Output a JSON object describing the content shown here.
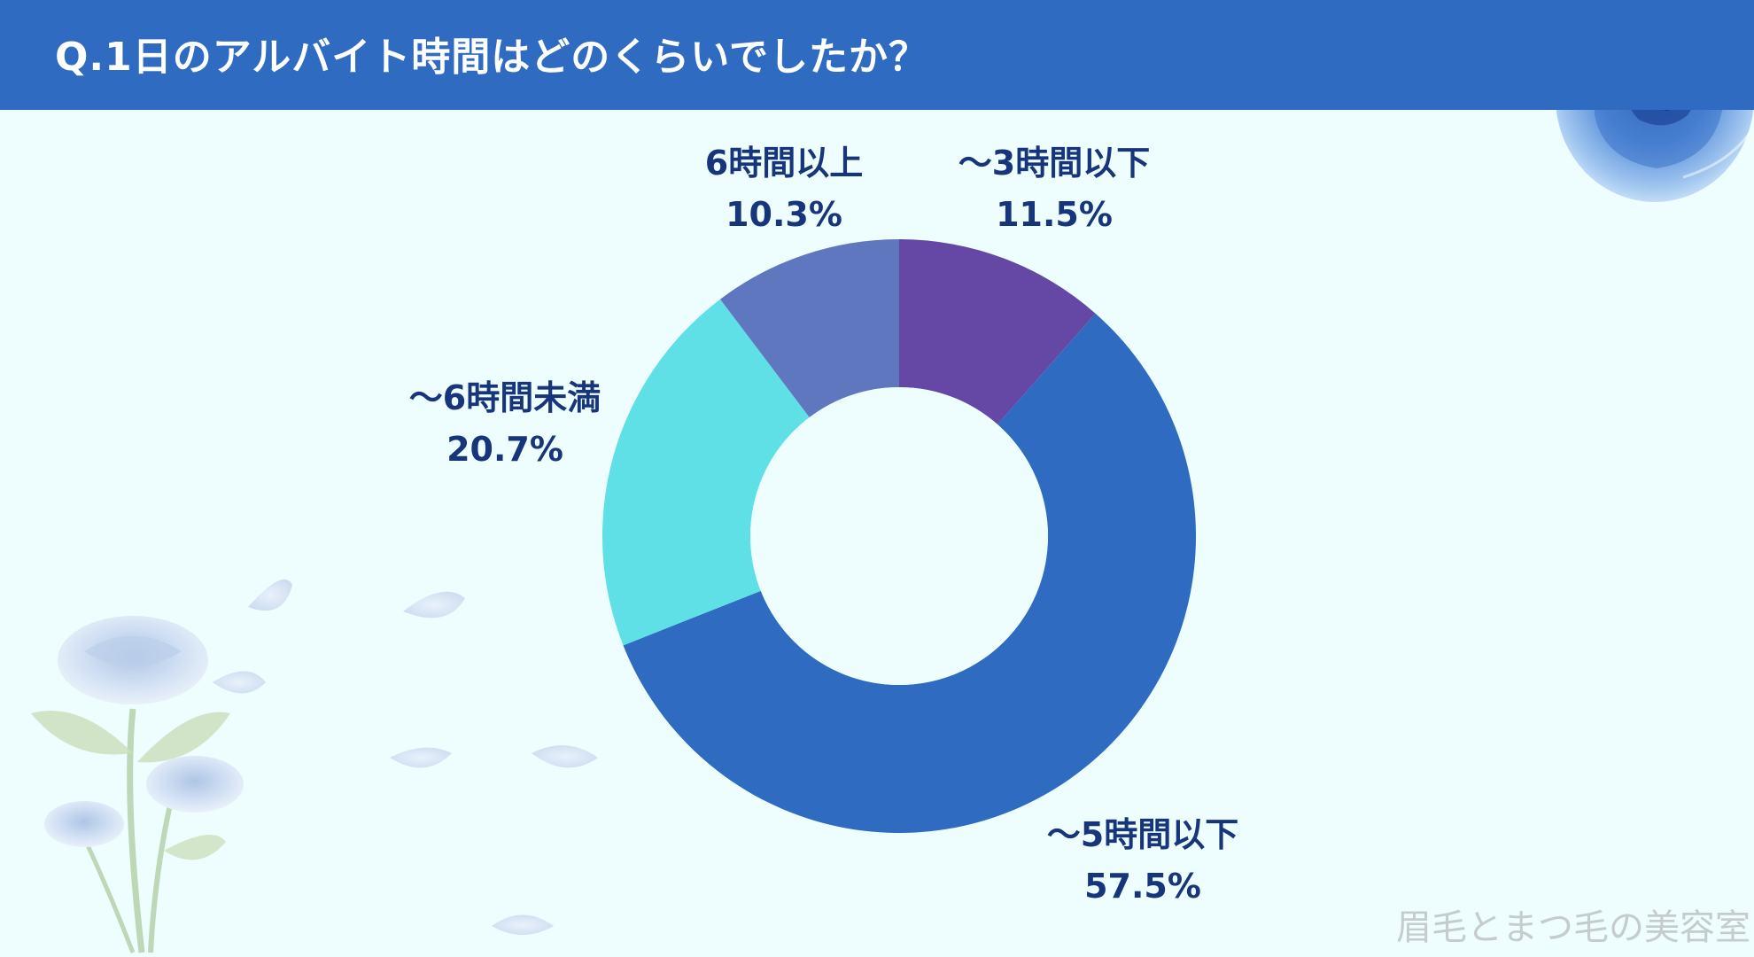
{
  "header": {
    "title": "Q.1日のアルバイト時間はどのくらいでしたか？"
  },
  "watermark": "眉毛とまつ毛の美容室",
  "colors": {
    "header_bg": "#2f6bc0",
    "background": "#eefdfd",
    "label_text": "#17357a"
  },
  "chart_data": {
    "type": "pie",
    "donut": true,
    "title": "Q.1日のアルバイト時間はどのくらいでしたか？",
    "slices": [
      {
        "label": "～3時間以下",
        "value": 11.5,
        "value_label": "11.5%",
        "color": "#6547a6"
      },
      {
        "label": "～5時間以下",
        "value": 57.5,
        "value_label": "57.5%",
        "color": "#2f6bc0"
      },
      {
        "label": "～6時間未満",
        "value": 20.7,
        "value_label": "20.7%",
        "color": "#5fe0e6"
      },
      {
        "label": "6時間以上",
        "value": 10.3,
        "value_label": "10.3%",
        "color": "#5f77bf"
      }
    ],
    "start_angle_deg": 0,
    "direction": "clockwise",
    "legend": "none"
  }
}
